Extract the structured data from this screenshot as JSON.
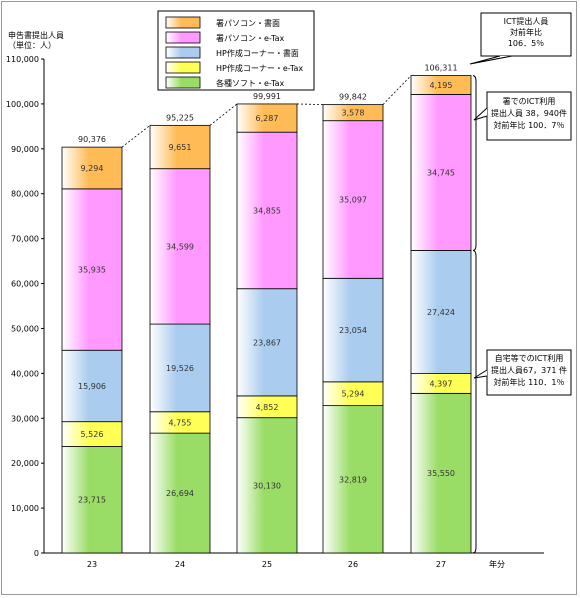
{
  "chart_data": {
    "type": "bar",
    "stacked": true,
    "title": "",
    "ylabel": "申告書提出人員\n（単位：人）",
    "xlabel": "年分",
    "ylim": [
      0,
      110000
    ],
    "yticks": [
      "0",
      "10,000",
      "20,000",
      "30,000",
      "40,000",
      "50,000",
      "60,000",
      "70,000",
      "80,000",
      "90,000",
      "100,000",
      "110,000"
    ],
    "categories": [
      "23",
      "24",
      "25",
      "26",
      "27"
    ],
    "series": [
      {
        "name": "各種ソフト・e-Tax",
        "color": "#99dd66",
        "values": [
          23715,
          26694,
          30130,
          32819,
          35550
        ],
        "labels": [
          "23,715",
          "26,694",
          "30,130",
          "32,819",
          "35,550"
        ]
      },
      {
        "name": "HP作成コーナー・e-Tax",
        "color": "#ffff55",
        "values": [
          5526,
          4755,
          4852,
          5294,
          4397
        ],
        "labels": [
          "5,526",
          "4,755",
          "4,852",
          "5,294",
          "4,397"
        ]
      },
      {
        "name": "HP作成コーナー・書面",
        "color": "#aaccee",
        "values": [
          15906,
          19526,
          23867,
          23054,
          27424
        ],
        "labels": [
          "15,906",
          "19,526",
          "23,867",
          "23,054",
          "27,424"
        ]
      },
      {
        "name": "署パソコン・e-Tax",
        "color": "#ff99ff",
        "values": [
          35935,
          34599,
          34855,
          35097,
          34745
        ],
        "labels": [
          "35,935",
          "34,599",
          "34,855",
          "35,097",
          "34,745"
        ]
      },
      {
        "name": "署パソコン・書面",
        "color": "#ffbb55",
        "values": [
          9294,
          9651,
          6287,
          3578,
          4195
        ],
        "labels": [
          "9,294",
          "9,651",
          "6,287",
          "3,578",
          "4,195"
        ]
      }
    ],
    "totals": [
      "90,376",
      "95,225",
      "99,991",
      "99,842",
      "106,311"
    ],
    "legend": {
      "placement": "top-center",
      "order": [
        "署パソコン・書面",
        "署パソコン・e-Tax",
        "HP作成コーナー・書面",
        "HP作成コーナー・e-Tax",
        "各種ソフト・e-Tax"
      ]
    },
    "annotations": {
      "ict_total": [
        "ICT提出人員",
        "対前年比",
        "106．5％"
      ],
      "office_ict": [
        "署でのICT利用",
        "提出人員 38，940件",
        "対前年比 100．7％"
      ],
      "home_ict": [
        "自宅等でのICT利用",
        "提出人員67，371 件",
        "対前年比 110．1％"
      ]
    }
  }
}
